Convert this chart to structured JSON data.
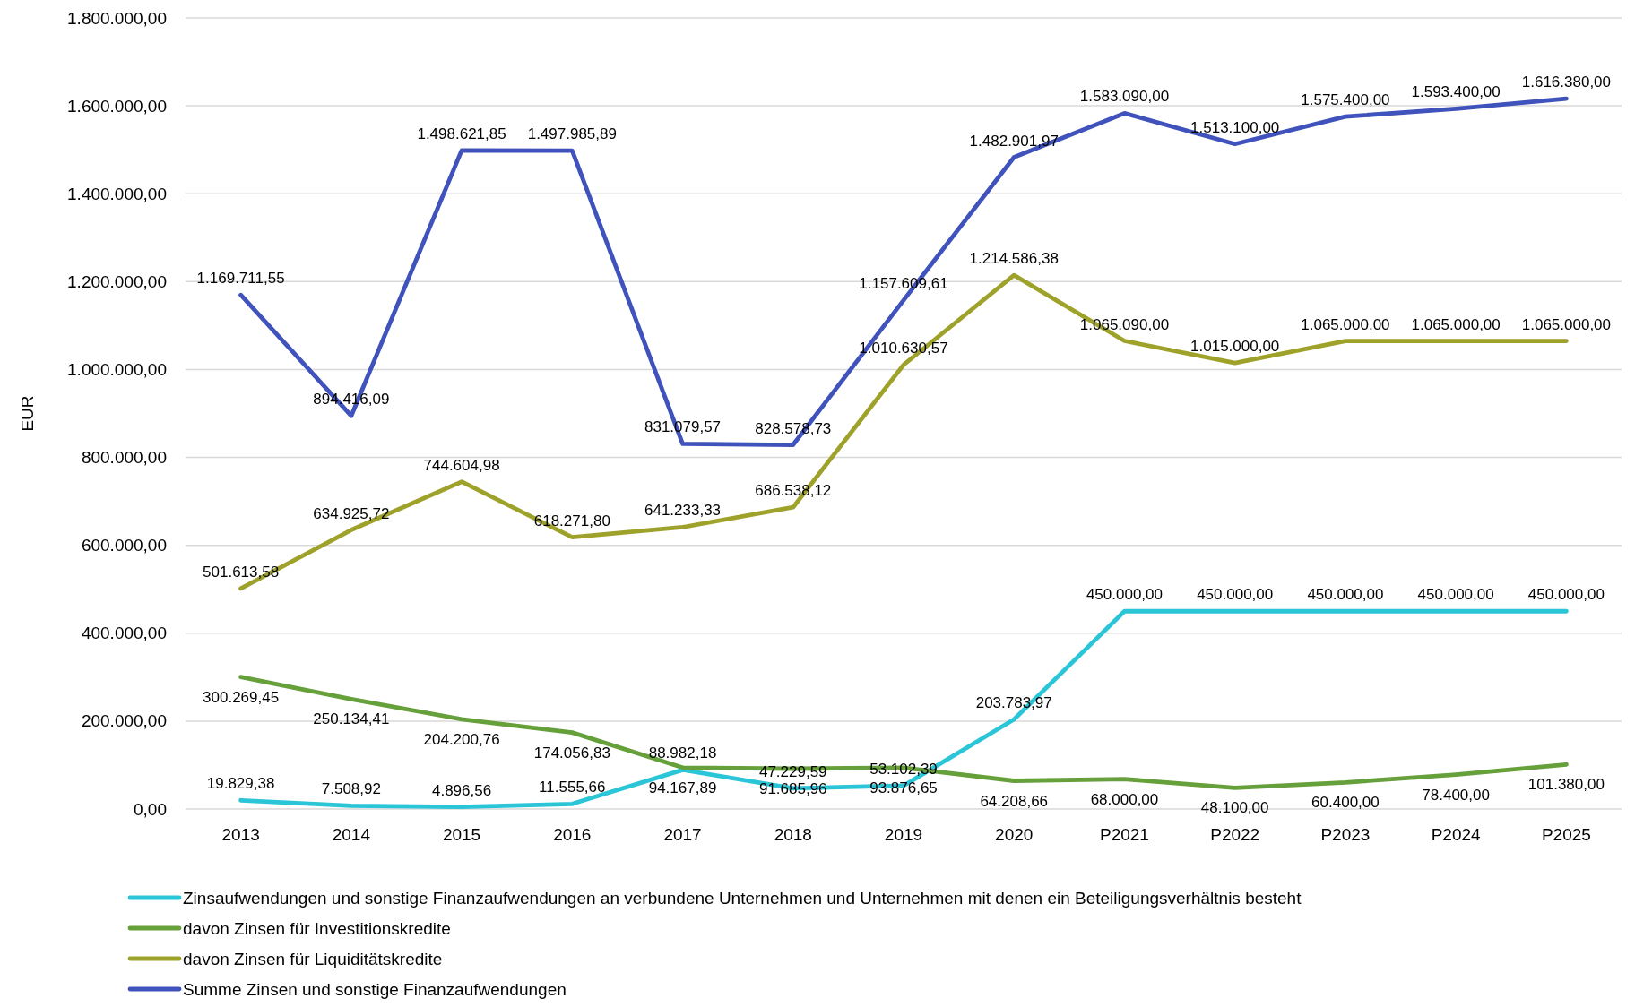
{
  "chart_data": {
    "type": "line",
    "ylabel": "EUR",
    "categories": [
      "2013",
      "2014",
      "2015",
      "2016",
      "2017",
      "2018",
      "2019",
      "2020",
      "P2021",
      "P2022",
      "P2023",
      "P2024",
      "P2025"
    ],
    "series": [
      {
        "name": "Zinsaufwendungen und sonstige Finanzaufwendungen an verbundene Unternehmen und Unternehmen mit denen ein Beteiligungsverhältnis besteht",
        "color": "#2bc5d8",
        "values": [
          19829.38,
          7508.92,
          4896.56,
          11555.66,
          88982.18,
          47229.59,
          53102.39,
          203783.97,
          450000,
          450000,
          450000,
          450000,
          450000
        ],
        "value_labels": [
          "19.829,38",
          "7.508,92",
          "4.896,56",
          "11.555,66",
          "88.982,18",
          "47.229,59",
          "53.102,39",
          "203.783,97",
          "450.000,00",
          "450.000,00",
          "450.000,00",
          "450.000,00",
          "450.000,00"
        ]
      },
      {
        "name": "davon Zinsen für Investitionskredite",
        "color": "#66a03a",
        "values": [
          300269.45,
          250134.41,
          204200.76,
          174056.83,
          94167.89,
          91685.96,
          93876.65,
          64208.66,
          68000,
          48100,
          60400,
          78400,
          101380
        ],
        "value_labels": [
          "300.269,45",
          "250.134,41",
          "204.200,76",
          "174.056,83",
          "94.167,89",
          "91.685,96",
          "93.876,65",
          "64.208,66",
          "68.000,00",
          "48.100,00",
          "60.400,00",
          "78.400,00",
          "101.380,00"
        ]
      },
      {
        "name": "davon Zinsen für Liquiditätskredite",
        "color": "#9fa22a",
        "values": [
          501613.58,
          634925.72,
          744604.98,
          618271.8,
          641233.33,
          686538.12,
          1010630.57,
          1214586.38,
          1065090,
          1015000,
          1065000,
          1065000,
          1065000
        ],
        "value_labels": [
          "501.613,58",
          "634.925,72",
          "744.604,98",
          "618.271,80",
          "641.233,33",
          "686.538,12",
          "1.010.630,57",
          "1.214.586,38",
          "1.065.090,00",
          "1.015.000,00",
          "1.065.000,00",
          "1.065.000,00",
          "1.065.000,00"
        ]
      },
      {
        "name": "Summe Zinsen und sonstige Finanzaufwendungen",
        "color": "#4052bb",
        "values": [
          1169711.55,
          894416.09,
          1498621.85,
          1497985.89,
          831079.57,
          828578.73,
          1157609.61,
          1482901.97,
          1583090,
          1513100,
          1575400,
          1593400,
          1616380
        ],
        "value_labels": [
          "1.169.711,55",
          "894.416,09",
          "1.498.621,85",
          "1.497.985,89",
          "831.079,57",
          "828.578,73",
          "1.157.609,61",
          "1.482.901,97",
          "1.583.090,00",
          "1.513.100,00",
          "1.575.400,00",
          "1.593.400,00",
          "1.616.380,00"
        ]
      }
    ],
    "ylim": [
      0,
      1800000
    ],
    "yticks": [
      {
        "value": 0,
        "label": "0,00"
      },
      {
        "value": 200000,
        "label": "200.000,00"
      },
      {
        "value": 400000,
        "label": "400.000,00"
      },
      {
        "value": 600000,
        "label": "600.000,00"
      },
      {
        "value": 800000,
        "label": "800.000,00"
      },
      {
        "value": 1000000,
        "label": "1.000.000,00"
      },
      {
        "value": 1200000,
        "label": "1.200.000,00"
      },
      {
        "value": 1400000,
        "label": "1.400.000,00"
      },
      {
        "value": 1600000,
        "label": "1.600.000,00"
      },
      {
        "value": 1800000,
        "label": "1.800.000,00"
      }
    ],
    "grid": "y",
    "legend": "bottom"
  }
}
